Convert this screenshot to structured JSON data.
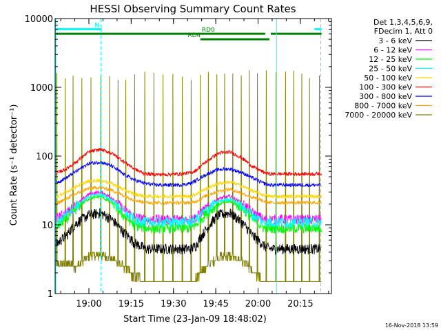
{
  "chart_data": {
    "type": "line",
    "title": "HESSI Observing Summary Count Rates",
    "xlabel": "Start Time (23-Jan-09 18:48:02)",
    "ylabel": "Count Rate (s⁻¹ detector⁻¹)",
    "y_scale": "log",
    "ylim": [
      1,
      10000
    ],
    "xlim_minutes": [
      0,
      98
    ],
    "x_ticks": [
      {
        "minute": 11.97,
        "label": "19:00"
      },
      {
        "minute": 26.97,
        "label": "19:15"
      },
      {
        "minute": 41.97,
        "label": "19:30"
      },
      {
        "minute": 56.97,
        "label": "19:45"
      },
      {
        "minute": 71.97,
        "label": "20:00"
      },
      {
        "minute": 86.97,
        "label": "20:15"
      }
    ],
    "y_ticks": [
      {
        "value": 1,
        "label": "1"
      },
      {
        "value": 10,
        "label": "10"
      },
      {
        "value": 100,
        "label": "100"
      },
      {
        "value": 1000,
        "label": "1000"
      },
      {
        "value": 10000,
        "label": "10000"
      }
    ],
    "legend": {
      "placement": "right",
      "header": [
        "Det 1,3,4,5,6,9,",
        "FDecim 1, Att 0"
      ]
    },
    "x": [
      0,
      4,
      8,
      12,
      16,
      20,
      24,
      28,
      32,
      36,
      40,
      44,
      48,
      50,
      54,
      58,
      62,
      66,
      70,
      74,
      76,
      80,
      84,
      88,
      92,
      94.5
    ],
    "series": [
      {
        "name": "3 - 6 keV",
        "color": "#000000",
        "values": [
          5,
          7,
          11,
          14,
          15,
          12,
          8,
          5.5,
          4.5,
          4.5,
          4.5,
          4.5,
          4.5,
          5,
          9,
          14,
          15,
          11,
          7,
          5,
          4.5,
          4.5,
          4.5,
          4.5,
          4.5,
          4.5
        ]
      },
      {
        "name": "6 - 12 keV",
        "color": "#ff00ff",
        "values": [
          12,
          15,
          20,
          28,
          30,
          25,
          17,
          13,
          12,
          12,
          12,
          12,
          12,
          13,
          18,
          24,
          26,
          21,
          15,
          12,
          12,
          12,
          12,
          12,
          12,
          12
        ]
      },
      {
        "name": "12 - 25 keV",
        "color": "#00ff00",
        "values": [
          9,
          12,
          18,
          24,
          26,
          21,
          14,
          10,
          9,
          9,
          9,
          9,
          9,
          10,
          15,
          20,
          22,
          18,
          12,
          9,
          9,
          9,
          9,
          9,
          9,
          9
        ]
      },
      {
        "name": "25 - 50 keV",
        "color": "#00ffff",
        "values": [
          11,
          14,
          19,
          26,
          28,
          23,
          16,
          12,
          11,
          11,
          11,
          11,
          11,
          12,
          17,
          22,
          24,
          19,
          14,
          11,
          11,
          11,
          11,
          11,
          11,
          11
        ]
      },
      {
        "name": "50 - 100 keV",
        "color": "#ffd700",
        "values": [
          25,
          30,
          37,
          43,
          45,
          40,
          33,
          28,
          26,
          26,
          26,
          26,
          26,
          28,
          34,
          40,
          42,
          37,
          31,
          27,
          26,
          26,
          26,
          26,
          26,
          26
        ]
      },
      {
        "name": "100 - 300 keV",
        "color": "#ff0000",
        "values": [
          55,
          65,
          85,
          115,
          125,
          110,
          85,
          65,
          55,
          54,
          54,
          55,
          57,
          62,
          85,
          110,
          115,
          95,
          70,
          58,
          55,
          55,
          55,
          55,
          55,
          56
        ]
      },
      {
        "name": "300 - 800 keV",
        "color": "#0000ff",
        "values": [
          40,
          48,
          62,
          78,
          82,
          72,
          55,
          45,
          40,
          38,
          38,
          38,
          40,
          44,
          55,
          64,
          65,
          58,
          48,
          40,
          38,
          38,
          38,
          38,
          38,
          38
        ]
      },
      {
        "name": "800 - 7000 keV",
        "color": "#ffa500",
        "values": [
          20,
          24,
          29,
          34,
          35,
          32,
          27,
          23,
          21,
          21,
          21,
          21,
          21,
          22,
          27,
          31,
          33,
          29,
          25,
          22,
          21,
          21,
          21,
          21,
          21,
          21
        ]
      },
      {
        "name": "7000 - 20000 keV",
        "color": "#808000",
        "style": "spiky",
        "values": [
          2.5,
          2.7,
          2.5,
          3.5,
          3.6,
          3.2,
          2.5,
          1.8,
          1.5,
          1.5,
          1.5,
          1.5,
          1.5,
          1.6,
          2.5,
          3.4,
          3.5,
          3.0,
          2.0,
          1.5,
          1.5,
          1.5,
          1.5,
          1.5,
          1.5,
          1.5
        ]
      }
    ],
    "annotations": {
      "flag_lines": [
        {
          "label": "N",
          "color": "#00ffff",
          "y": 7000,
          "segments": [
            [
              0,
              16.5
            ],
            [
              92,
              98
            ]
          ]
        },
        {
          "label": "RD0",
          "color": "#008000",
          "y": 6000,
          "segments": [
            [
              0,
              74.5
            ],
            [
              76.5,
              98
            ]
          ]
        },
        {
          "label": "RD4",
          "color": "#008000",
          "y": 5000,
          "segments": [
            [
              51.5,
              76
            ]
          ]
        }
      ],
      "vertical_lines": [
        {
          "minute": 16.2,
          "color": "#00ffff",
          "dashed": true
        },
        {
          "minute": 78.5,
          "color": "#00ffff",
          "dashed": false
        },
        {
          "minute": 94.2,
          "color": "#00ffff",
          "dashed": true
        }
      ],
      "spike_peak": 1800,
      "spike_interval_minutes": 3.2
    }
  },
  "footer": {
    "date_stamp": "16-Nov-2018 13:59"
  }
}
